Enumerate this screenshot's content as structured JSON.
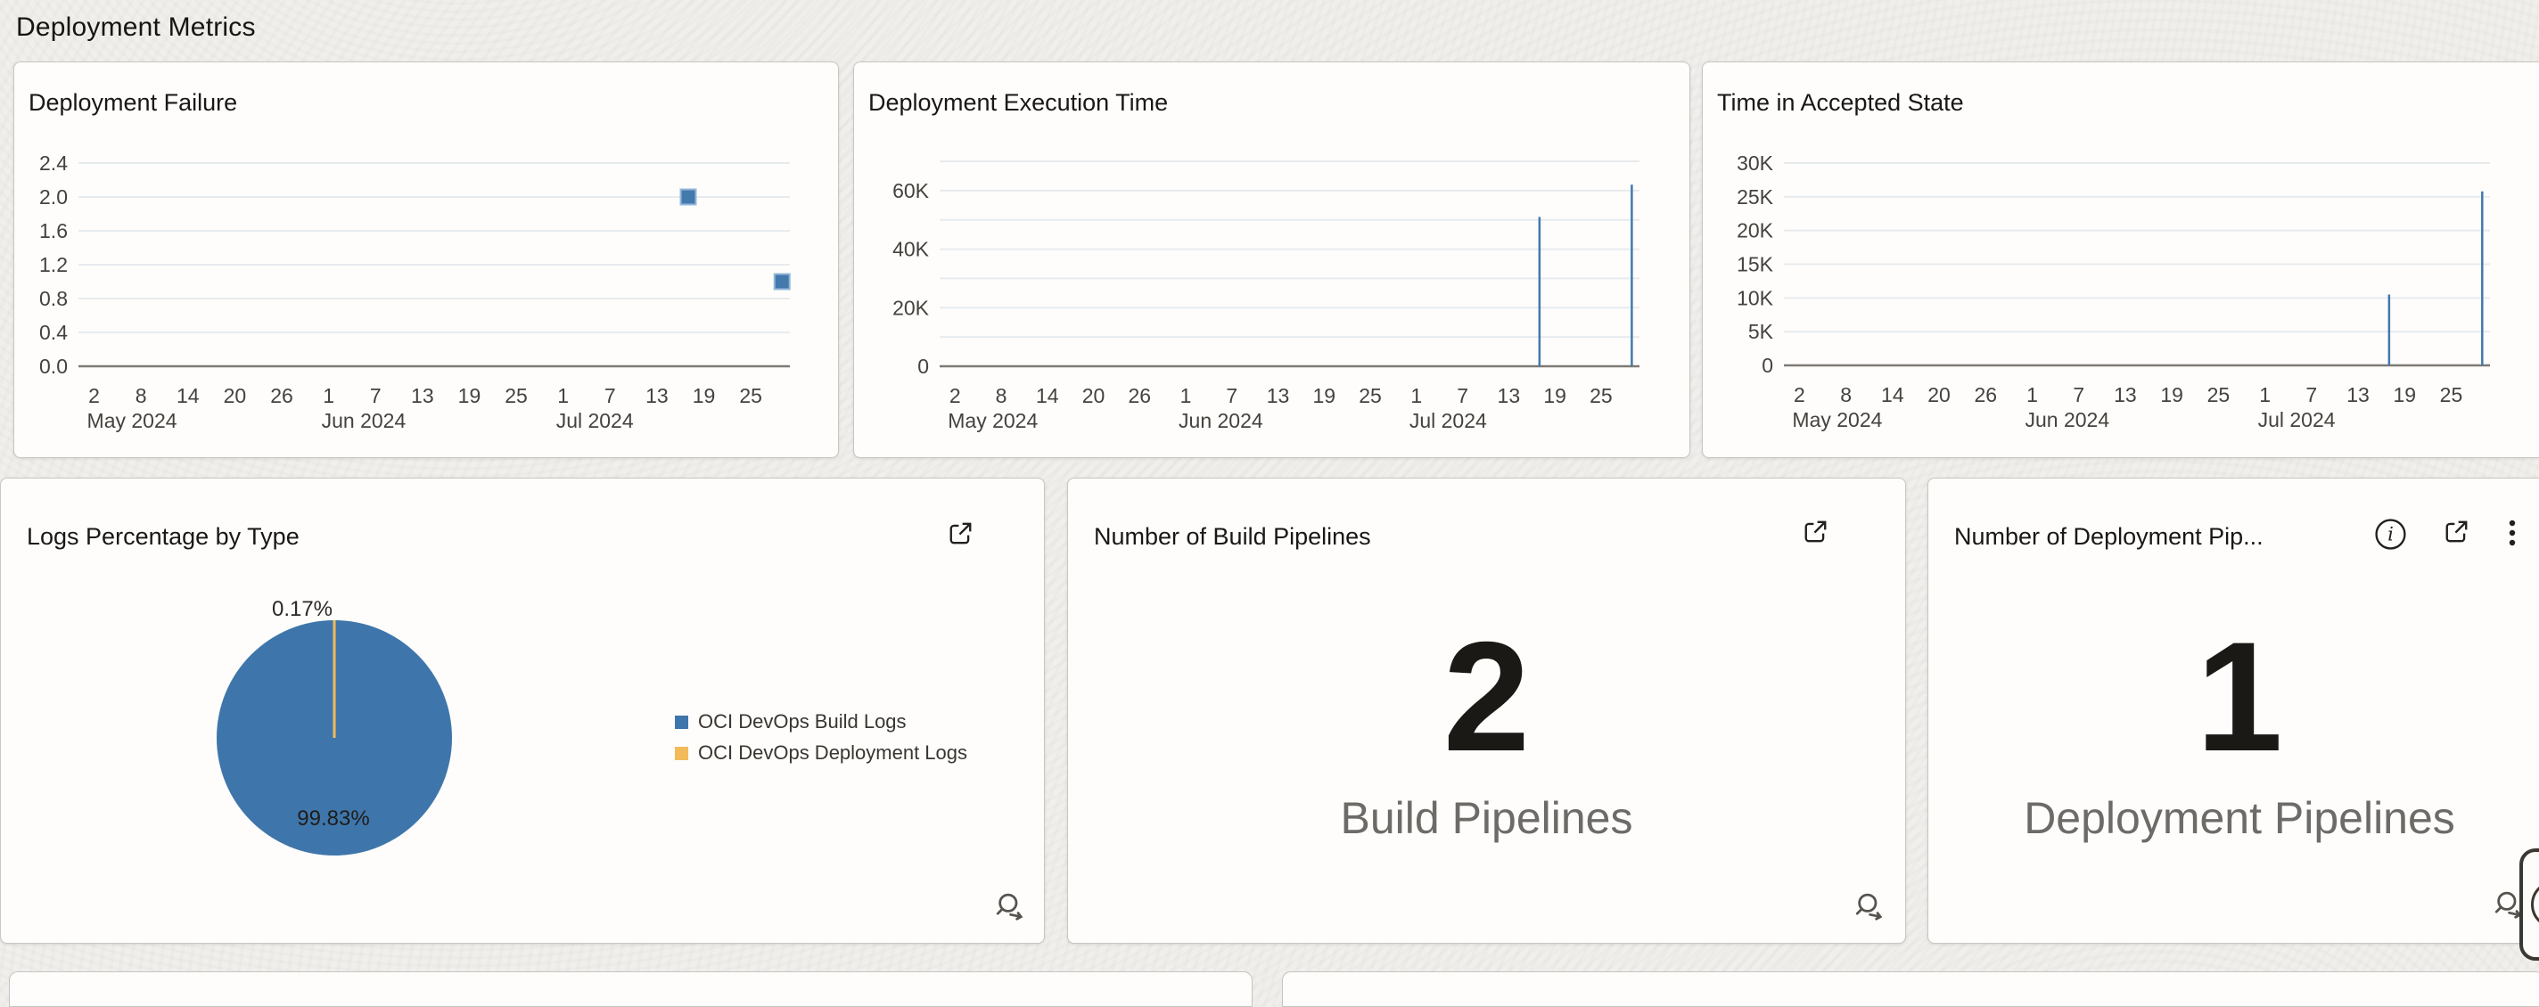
{
  "page": {
    "title": "Deployment Metrics"
  },
  "colors": {
    "accent_blue": "#4379AE",
    "marker_fill": "#4479AD",
    "marker_stroke": "#93B7D8",
    "accent_yellow": "#F2BA59",
    "pie_blue": "#3E76AB",
    "pie_sliver_yellow": "#E9BE74",
    "grid_line": "#E7EBEE",
    "baseline": "#7E7A74",
    "axis_text": "#45423E",
    "pct_text": "#2B2925"
  },
  "icons": {
    "expand": "open-in-new-icon",
    "info": "info-icon",
    "menu": "kebab-menu-icon",
    "drilldown": "search-arrow-icon"
  },
  "cards": {
    "deployment_failure": {
      "title": "Deployment Failure"
    },
    "deployment_execution_time": {
      "title": "Deployment Execution Time"
    },
    "time_in_accepted_state": {
      "title": "Time in Accepted State"
    },
    "logs_percentage": {
      "title": "Logs Percentage by Type"
    },
    "build_pipelines": {
      "title": "Number of Build Pipelines",
      "value": "2",
      "label": "Build Pipelines"
    },
    "deployment_pipelines": {
      "title": "Number of Deployment Pip...",
      "value": "1",
      "label": "Deployment Pipelines"
    }
  },
  "chart_data": [
    {
      "id": "deployment-failure",
      "type": "scatter",
      "title": "Deployment Failure",
      "x": {
        "start": "2024-04-30",
        "span_days": 91,
        "ticks": [
          {
            "d": 2,
            "label": "2"
          },
          {
            "d": 8,
            "label": "8"
          },
          {
            "d": 14,
            "label": "14"
          },
          {
            "d": 20,
            "label": "20"
          },
          {
            "d": 26,
            "label": "26"
          },
          {
            "d": 32,
            "label": "1"
          },
          {
            "d": 38,
            "label": "7"
          },
          {
            "d": 44,
            "label": "13"
          },
          {
            "d": 50,
            "label": "19"
          },
          {
            "d": 56,
            "label": "25"
          },
          {
            "d": 62,
            "label": "1"
          },
          {
            "d": 68,
            "label": "7"
          },
          {
            "d": 74,
            "label": "13"
          },
          {
            "d": 80,
            "label": "19"
          },
          {
            "d": 86,
            "label": "25"
          }
        ],
        "months": [
          {
            "d": 2,
            "label": "May 2024"
          },
          {
            "d": 32,
            "label": "Jun 2024"
          },
          {
            "d": 62,
            "label": "Jul 2024"
          }
        ]
      },
      "y": {
        "min": 0,
        "max": 2.4,
        "grid": [
          0,
          0.4,
          0.8,
          1.2,
          1.6,
          2.0,
          2.4
        ],
        "ticks": [
          {
            "v": 0,
            "label": "0.0"
          },
          {
            "v": 0.4,
            "label": "0.4"
          },
          {
            "v": 0.8,
            "label": "0.8"
          },
          {
            "v": 1.2,
            "label": "1.2"
          },
          {
            "v": 1.6,
            "label": "1.6"
          },
          {
            "v": 2.0,
            "label": "2.0"
          },
          {
            "v": 2.4,
            "label": "2.4"
          }
        ]
      },
      "points": [
        {
          "date": "2024-07-17",
          "d": 78,
          "value": 2.0
        },
        {
          "date": "2024-07-29",
          "d": 90,
          "value": 1.0
        }
      ]
    },
    {
      "id": "deployment-execution-time",
      "type": "needle",
      "title": "Deployment Execution Time",
      "x": {
        "start": "2024-04-30",
        "span_days": 91,
        "ticks": [
          {
            "d": 2,
            "label": "2"
          },
          {
            "d": 8,
            "label": "8"
          },
          {
            "d": 14,
            "label": "14"
          },
          {
            "d": 20,
            "label": "20"
          },
          {
            "d": 26,
            "label": "26"
          },
          {
            "d": 32,
            "label": "1"
          },
          {
            "d": 38,
            "label": "7"
          },
          {
            "d": 44,
            "label": "13"
          },
          {
            "d": 50,
            "label": "19"
          },
          {
            "d": 56,
            "label": "25"
          },
          {
            "d": 62,
            "label": "1"
          },
          {
            "d": 68,
            "label": "7"
          },
          {
            "d": 74,
            "label": "13"
          },
          {
            "d": 80,
            "label": "19"
          },
          {
            "d": 86,
            "label": "25"
          }
        ],
        "months": [
          {
            "d": 2,
            "label": "May 2024"
          },
          {
            "d": 32,
            "label": "Jun 2024"
          },
          {
            "d": 62,
            "label": "Jul 2024"
          }
        ]
      },
      "y": {
        "min": 0,
        "max": 70000,
        "grid": [
          0,
          10000,
          20000,
          30000,
          40000,
          50000,
          60000,
          70000
        ],
        "ticks": [
          {
            "v": 0,
            "label": "0"
          },
          {
            "v": 20000,
            "label": "20K"
          },
          {
            "v": 40000,
            "label": "40K"
          },
          {
            "v": 60000,
            "label": "60K"
          }
        ]
      },
      "points": [
        {
          "date": "2024-07-17",
          "d": 78,
          "value": 51000
        },
        {
          "date": "2024-07-29",
          "d": 90,
          "value": 62000
        }
      ]
    },
    {
      "id": "time-in-accepted-state",
      "type": "needle",
      "title": "Time in Accepted State",
      "x": {
        "start": "2024-04-30",
        "span_days": 91,
        "ticks": [
          {
            "d": 2,
            "label": "2"
          },
          {
            "d": 8,
            "label": "8"
          },
          {
            "d": 14,
            "label": "14"
          },
          {
            "d": 20,
            "label": "20"
          },
          {
            "d": 26,
            "label": "26"
          },
          {
            "d": 32,
            "label": "1"
          },
          {
            "d": 38,
            "label": "7"
          },
          {
            "d": 44,
            "label": "13"
          },
          {
            "d": 50,
            "label": "19"
          },
          {
            "d": 56,
            "label": "25"
          },
          {
            "d": 62,
            "label": "1"
          },
          {
            "d": 68,
            "label": "7"
          },
          {
            "d": 74,
            "label": "13"
          },
          {
            "d": 80,
            "label": "19"
          },
          {
            "d": 86,
            "label": "25"
          }
        ],
        "months": [
          {
            "d": 2,
            "label": "May 2024"
          },
          {
            "d": 32,
            "label": "Jun 2024"
          },
          {
            "d": 62,
            "label": "Jul 2024"
          }
        ]
      },
      "y": {
        "min": 0,
        "max": 30000,
        "grid": [
          0,
          5000,
          10000,
          15000,
          20000,
          25000,
          30000
        ],
        "ticks": [
          {
            "v": 0,
            "label": "0"
          },
          {
            "v": 5000,
            "label": "5K"
          },
          {
            "v": 10000,
            "label": "10K"
          },
          {
            "v": 15000,
            "label": "15K"
          },
          {
            "v": 20000,
            "label": "20K"
          },
          {
            "v": 25000,
            "label": "25K"
          },
          {
            "v": 30000,
            "label": "30K"
          }
        ]
      },
      "points": [
        {
          "date": "2024-07-17",
          "d": 78,
          "value": 10500
        },
        {
          "date": "2024-07-29",
          "d": 90,
          "value": 25800
        }
      ]
    },
    {
      "id": "logs-percentage",
      "type": "pie",
      "title": "Logs Percentage by Type",
      "legend_position": "right",
      "slices": [
        {
          "label": "OCI DevOps Build Logs",
          "value": 99.83,
          "pct_label": "99.83%",
          "color": "#3E76AB"
        },
        {
          "label": "OCI DevOps Deployment Logs",
          "value": 0.17,
          "pct_label": "0.17%",
          "color": "#F2BA59"
        }
      ]
    }
  ]
}
